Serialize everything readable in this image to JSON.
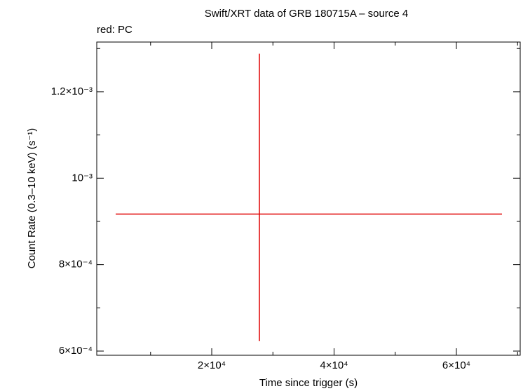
{
  "chart_data": {
    "type": "scatter",
    "title": "Swift/XRT data of GRB 180715A – source 4",
    "subtitle": "red: PC",
    "xlabel": "Time since trigger (s)",
    "ylabel": "Count Rate (0.3–10 keV) (s⁻¹)",
    "xlim": [
      1200,
      70430
    ],
    "ylim": [
      0.0005903,
      0.001315
    ],
    "xticks": [
      {
        "value": 20000,
        "label": "2×10⁴"
      },
      {
        "value": 40000,
        "label": "4×10⁴"
      },
      {
        "value": 60000,
        "label": "6×10⁴"
      }
    ],
    "xticks_minor": [
      10000,
      30000,
      50000,
      70000
    ],
    "yticks": [
      {
        "value": 0.0006,
        "label": "6×10⁻⁴"
      },
      {
        "value": 0.0008,
        "label": "8×10⁻⁴"
      },
      {
        "value": 0.001,
        "label": "10⁻³"
      },
      {
        "value": 0.0012,
        "label": "1.2×10⁻³"
      }
    ],
    "yticks_minor": [
      0.0007,
      0.0009,
      0.0011,
      0.0013
    ],
    "series": [
      {
        "color": "#e00000",
        "x": [
          27790
        ],
        "values": [
          0.000917
        ],
        "xerr_minus": [
          23490
        ],
        "xerr_plus": [
          39660
        ],
        "yerr_minus": [
          0.000294
        ],
        "yerr_plus": [
          0.000371
        ]
      }
    ]
  }
}
